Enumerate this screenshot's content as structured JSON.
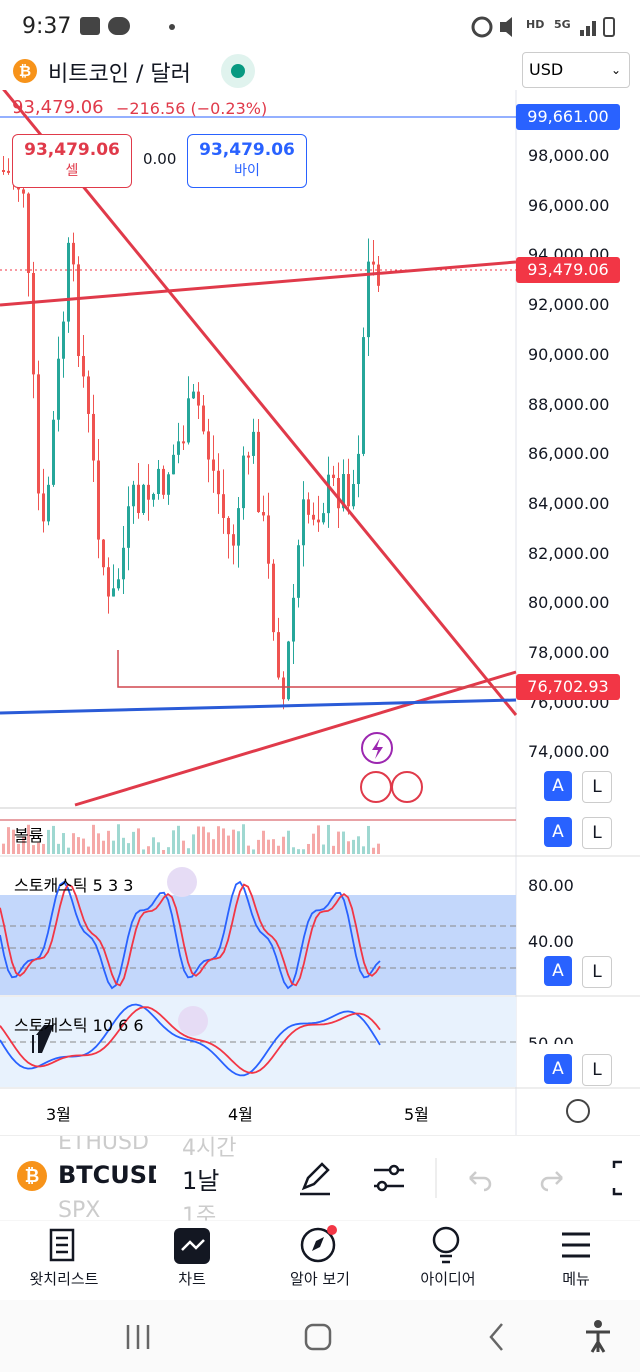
{
  "status_bar": {
    "time": "9:37"
  },
  "header": {
    "symbol": "비트코인 / 달러",
    "currency": "USD"
  },
  "price": {
    "last": "93,479.06",
    "change": "−216.56 (−0.23%)"
  },
  "order": {
    "sell_price": "93,479.06",
    "sell_label": "셀",
    "spread": "0.00",
    "buy_price": "93,479.06",
    "buy_label": "바이"
  },
  "price_axis": {
    "labels": [
      "98,000.00",
      "96,000.00",
      "94,000.00",
      "92,000.00",
      "90,000.00",
      "88,000.00",
      "86,000.00",
      "84,000.00",
      "82,000.00",
      "80,000.00",
      "78,000.00",
      "76,000.00",
      "74,000.00"
    ],
    "badges": [
      "99,661.00",
      "93,479.06",
      "76,702.93"
    ]
  },
  "panes": {
    "volume": "볼륨",
    "stoch1": {
      "title": "스토캐스틱 5 3 3",
      "labels": [
        "80.00",
        "40.00"
      ]
    },
    "stoch2": {
      "title": "스토캐스틱 10 6 6",
      "labels": [
        "50.00"
      ]
    },
    "buttons": [
      "A",
      "L"
    ]
  },
  "time_axis": [
    "3월",
    "4월",
    "5월"
  ],
  "toolbar": {
    "symbols": [
      "ETHUSD",
      "BTCUSD",
      "SPX"
    ],
    "intervals": [
      "4시간",
      "1날",
      "1주"
    ]
  },
  "nav": [
    "왓치리스트",
    "차트",
    "알아 보기",
    "아이디어",
    "메뉴"
  ]
}
